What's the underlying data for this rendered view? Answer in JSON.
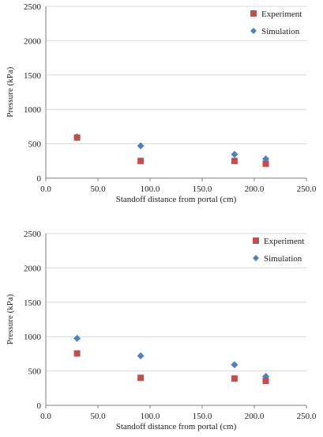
{
  "colors": {
    "experiment": "#c0504d",
    "simulation": "#4f81bd",
    "grid": "#d9d9d9",
    "axis": "#7f7f7f"
  },
  "chart_data": [
    {
      "type": "scatter",
      "title": "",
      "xlabel": "Standoff distance from portal (cm)",
      "ylabel": "Pressure (kPa)",
      "xlim": [
        0,
        250
      ],
      "ylim": [
        0,
        2500
      ],
      "xticks": [
        "0.0",
        "50.0",
        "100.0",
        "150.0",
        "200.0",
        "250.0"
      ],
      "yticks": [
        "0",
        "500",
        "1000",
        "1500",
        "2000",
        "2500"
      ],
      "grid": "horizontal",
      "legend": "top-right",
      "series": [
        {
          "name": "Experiment",
          "marker": "square",
          "x": [
            30,
            91,
            181,
            211
          ],
          "y": [
            590,
            250,
            250,
            210
          ]
        },
        {
          "name": "Simulation",
          "marker": "diamond",
          "x": [
            30,
            91,
            181,
            211
          ],
          "y": [
            600,
            470,
            345,
            280
          ]
        }
      ]
    },
    {
      "type": "scatter",
      "title": "",
      "xlabel": "Standoff distance from portal (cm)",
      "ylabel": "Pressure (kPa)",
      "xlim": [
        0,
        250
      ],
      "ylim": [
        0,
        2500
      ],
      "xticks": [
        "0.0",
        "50.0",
        "100.0",
        "150.0",
        "200.0",
        "250.0"
      ],
      "yticks": [
        "0",
        "500",
        "1000",
        "1500",
        "2000",
        "2500"
      ],
      "grid": "horizontal",
      "legend": "top-right",
      "series": [
        {
          "name": "Experiment",
          "marker": "square",
          "x": [
            30,
            91,
            181,
            211
          ],
          "y": [
            755,
            400,
            390,
            355
          ]
        },
        {
          "name": "Simulation",
          "marker": "diamond",
          "x": [
            30,
            91,
            181,
            211
          ],
          "y": [
            975,
            720,
            590,
            420
          ]
        }
      ]
    }
  ]
}
